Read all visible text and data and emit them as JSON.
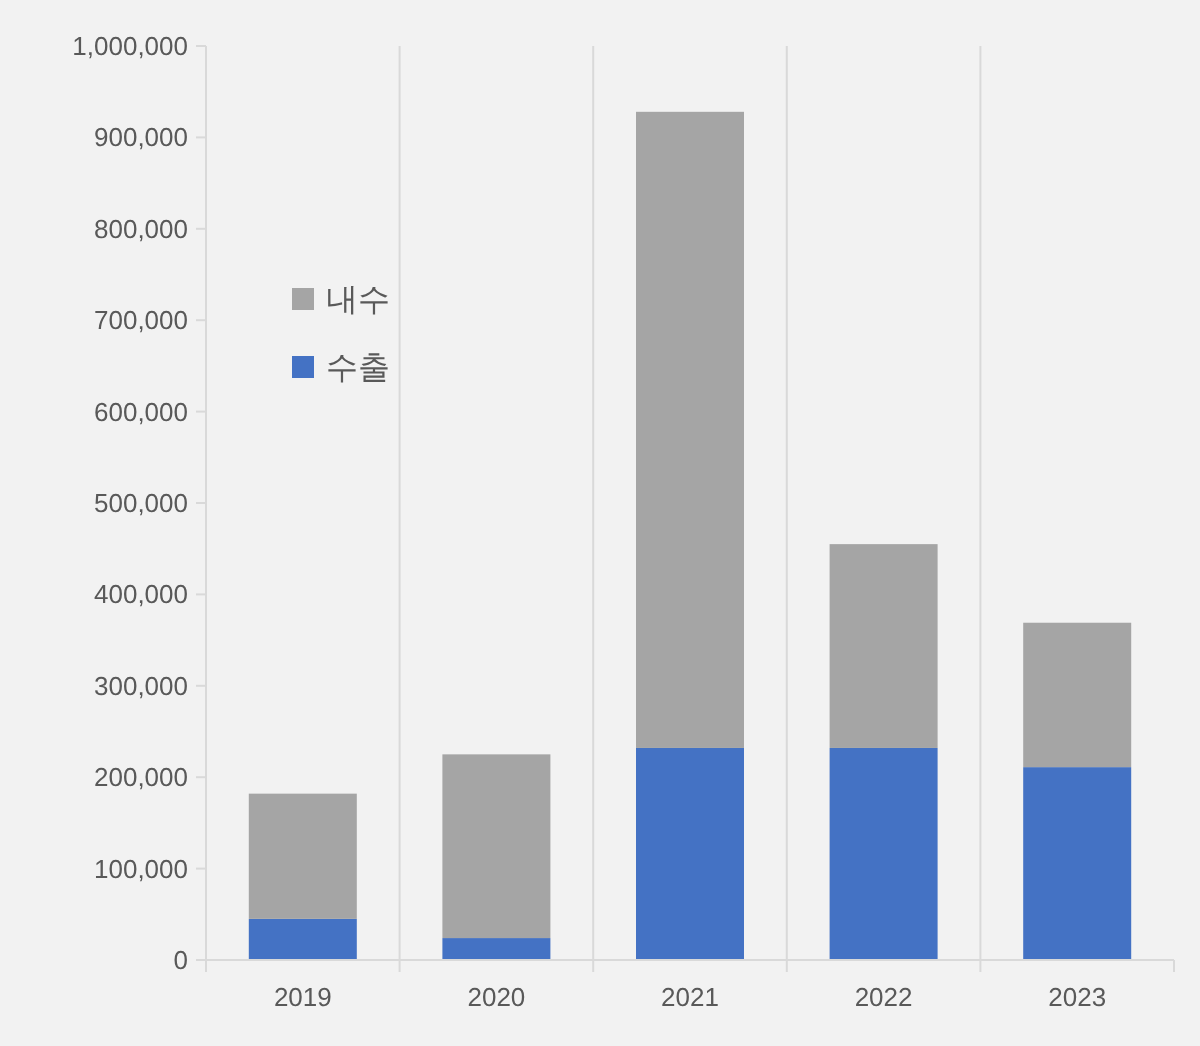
{
  "chart_data": {
    "type": "bar",
    "stacked": true,
    "categories": [
      "2019",
      "2020",
      "2021",
      "2022",
      "2023"
    ],
    "series": [
      {
        "name": "수출",
        "color": "#4472c4",
        "values": [
          45000,
          24000,
          232000,
          232000,
          211000
        ]
      },
      {
        "name": "내수",
        "color": "#a5a5a5",
        "values": [
          137000,
          201000,
          696000,
          223000,
          158000
        ]
      }
    ],
    "ylim": [
      0,
      1000000
    ],
    "yticks": [
      0,
      {
        "value": 100000,
        "label": "100,000"
      },
      {
        "value": 200000,
        "label": "200,000"
      },
      {
        "value": 300000,
        "label": "300,000"
      },
      {
        "value": 400000,
        "label": "400,000"
      },
      {
        "value": 500000,
        "label": "500,000"
      },
      {
        "value": 600000,
        "label": "600,000"
      },
      {
        "value": 700000,
        "label": "700,000"
      },
      {
        "value": 800000,
        "label": "800,000"
      },
      {
        "value": 900000,
        "label": "900,000"
      },
      {
        "value": 1000000,
        "label": "1,000,000"
      }
    ],
    "grid": "x",
    "legend": "top left"
  }
}
